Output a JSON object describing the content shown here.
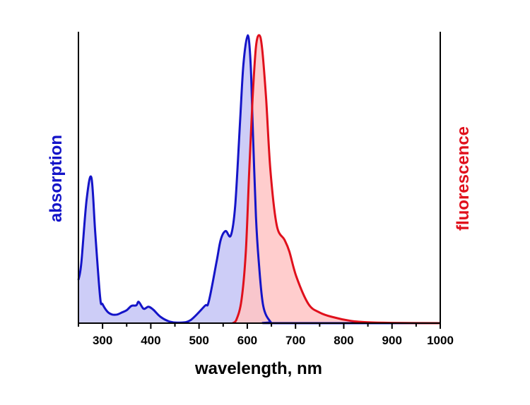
{
  "chart_data": {
    "type": "area",
    "title": "",
    "xlabel": "wavelength, nm",
    "ylabel_left": "absorption",
    "ylabel_right": "fluorescence",
    "xlim": [
      250,
      1000
    ],
    "ylim": [
      0,
      1
    ],
    "x_ticks": [
      300,
      400,
      500,
      600,
      700,
      800,
      900,
      1000
    ],
    "x_tick_labels": [
      "300",
      "400",
      "500",
      "600",
      "700",
      "800",
      "900",
      "1000"
    ],
    "y_ticks_shown": false,
    "grid": false,
    "series": [
      {
        "color": "#1414c8",
        "fill": "#c4c4f6",
        "x": [
          250,
          256,
          267,
          277,
          285,
          295,
          300,
          310,
          320,
          330,
          340,
          350,
          360,
          370,
          375,
          385,
          395,
          405,
          420,
          440,
          460,
          482,
          512,
          520,
          536,
          545,
          555,
          566,
          575,
          585,
          592,
          601,
          607,
          611,
          618,
          624,
          633,
          648,
          660,
          1000
        ],
        "y": [
          0.15,
          0.21,
          0.43,
          0.505,
          0.31,
          0.09,
          0.066,
          0.04,
          0.03,
          0.03,
          0.037,
          0.045,
          0.06,
          0.062,
          0.074,
          0.05,
          0.057,
          0.047,
          0.022,
          0.005,
          0.002,
          0.01,
          0.06,
          0.074,
          0.21,
          0.29,
          0.32,
          0.305,
          0.41,
          0.7,
          0.9,
          1.0,
          0.9,
          0.7,
          0.37,
          0.21,
          0.06,
          0.005,
          0,
          0
        ]
      },
      {
        "color": "#e0101c",
        "fill": "#ffc4c4",
        "x": [
          570,
          577,
          588,
          597,
          604,
          611,
          618,
          625,
          631,
          639,
          648,
          661,
          677,
          687,
          702,
          727,
          750,
          775,
          814,
          850,
          900,
          1000
        ],
        "y": [
          0,
          0.01,
          0.08,
          0.25,
          0.53,
          0.78,
          0.96,
          1.0,
          0.95,
          0.78,
          0.53,
          0.34,
          0.29,
          0.25,
          0.16,
          0.066,
          0.037,
          0.022,
          0.008,
          0.003,
          0.001,
          0
        ]
      }
    ]
  }
}
